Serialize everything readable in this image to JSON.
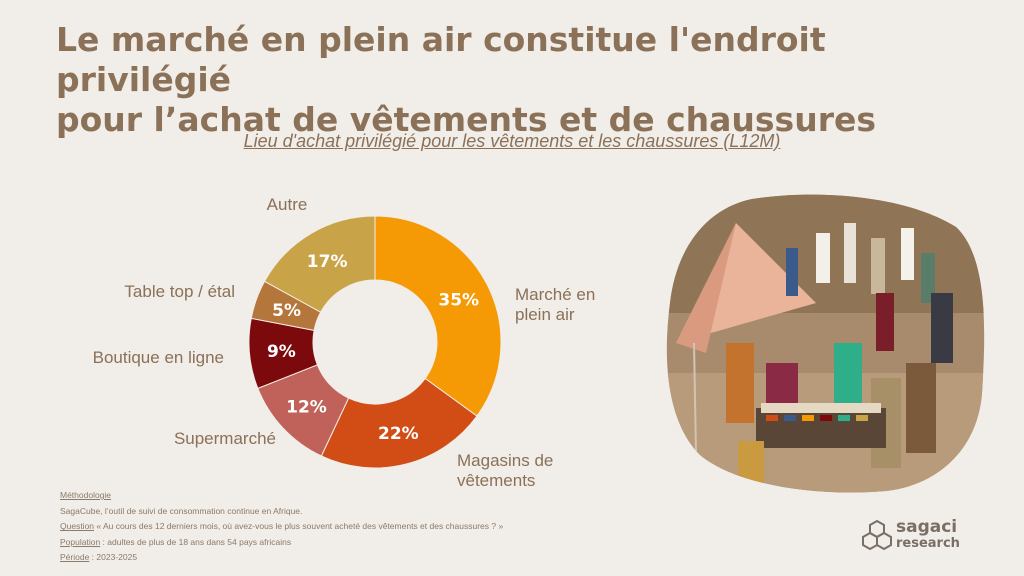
{
  "header": {
    "title_line1": "Le marché en plein air constitue l'endroit privilégié",
    "title_line2": "pour l’achat de vêtements et de chaussures"
  },
  "chart_data": {
    "type": "pie",
    "donut": true,
    "title": "Lieu d'achat privilégié pour les vêtements et les chaussures (L12M)",
    "slices": [
      {
        "label": "Marché en plein air",
        "label_lines": [
          "Marché en",
          "plein air"
        ],
        "value": 35,
        "value_label": "35%",
        "color": "#f59a05"
      },
      {
        "label": "Magasins de vêtements",
        "label_lines": [
          "Magasins de",
          "vêtements"
        ],
        "value": 22,
        "value_label": "22%",
        "color": "#d24c15"
      },
      {
        "label": "Supermarché",
        "label_lines": [
          "Supermarché"
        ],
        "value": 12,
        "value_label": "12%",
        "color": "#c0625a"
      },
      {
        "label": "Boutique en ligne",
        "label_lines": [
          "Boutique en ligne"
        ],
        "value": 9,
        "value_label": "9%",
        "color": "#7c0a0d"
      },
      {
        "label": "Table top / étal",
        "label_lines": [
          "Table top / étal"
        ],
        "value": 5,
        "value_label": "5%",
        "color": "#b5763c"
      },
      {
        "label": "Autre",
        "label_lines": [
          "Autre"
        ],
        "value": 17,
        "value_label": "17%",
        "color": "#c9a347"
      }
    ],
    "legend": "none"
  },
  "footer": {
    "methodology_label": "Méthodologie",
    "methodology_text": "SagaCube, l’outil de suivi de consommation continue en Afrique.",
    "question_label": "Question",
    "question_text": " « Au cours des 12 derniers mois, où avez-vous le plus souvent acheté des vêtements et des chaussures ? »",
    "population_label": "Population",
    "population_text": " : adultes de plus de 18 ans dans 54 pays africains",
    "period_label": "Période",
    "period_text": " : 2023-2025"
  },
  "logo": {
    "line1": "sagaci",
    "line2": "research",
    "color": "#7a6f66"
  },
  "photo": {
    "icon": "market-photo"
  }
}
